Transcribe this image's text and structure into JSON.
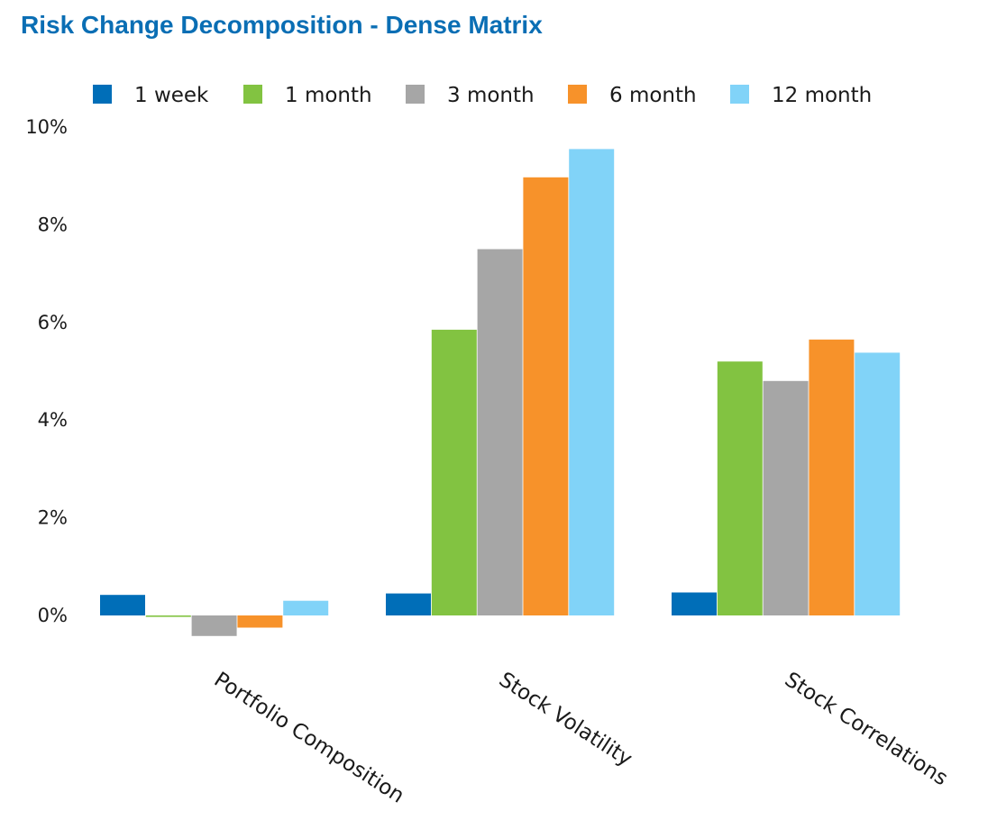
{
  "chart_data": {
    "type": "bar",
    "title": "Risk Change Decomposition - Dense Matrix",
    "xlabel": "",
    "ylabel": "",
    "categories": [
      "Portfolio Composition",
      "Stock Volatility",
      "Stock Correlations"
    ],
    "series": [
      {
        "name": "1 week",
        "color": "#006eb8",
        "values": [
          0.42,
          0.45,
          0.47
        ]
      },
      {
        "name": "1 month",
        "color": "#82c341",
        "values": [
          -0.03,
          5.85,
          5.2
        ]
      },
      {
        "name": "3 month",
        "color": "#a6a6a6",
        "values": [
          -0.42,
          7.5,
          4.8
        ]
      },
      {
        "name": "6 month",
        "color": "#f7922a",
        "values": [
          -0.25,
          8.97,
          5.65
        ]
      },
      {
        "name": "12 month",
        "color": "#81d3f8",
        "values": [
          0.3,
          9.55,
          5.38
        ]
      }
    ],
    "ylim": [
      -1,
      10
    ],
    "yticks": [
      "0%",
      "2%",
      "4%",
      "6%",
      "8%",
      "10%"
    ],
    "ytick_values": [
      0,
      2,
      4,
      6,
      8,
      10
    ],
    "legend_position": "top",
    "grid": false
  }
}
